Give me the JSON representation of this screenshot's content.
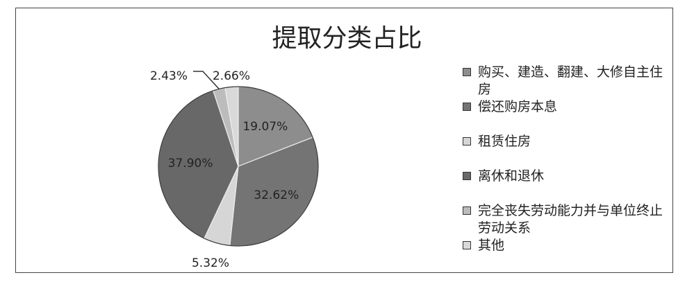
{
  "chart_data": {
    "type": "pie",
    "title": "提取分类占比",
    "start_angle": "12 o'clock",
    "direction": "clockwise",
    "legend_position": "right",
    "slices": [
      {
        "label": "购买、建造、翻建、大修自主住房",
        "value": 19.07,
        "data_label": "19.07%",
        "color": "#8d8d8d"
      },
      {
        "label": "偿还购房本息",
        "value": 32.62,
        "data_label": "32.62%",
        "color": "#747474"
      },
      {
        "label": "租赁住房",
        "value": 5.32,
        "data_label": "5.32%",
        "color": "#d6d6d6"
      },
      {
        "label": "离休和退休",
        "value": 37.9,
        "data_label": "37.90%",
        "color": "#686868"
      },
      {
        "label": "完全丧失劳动能力并与单位终止劳动关系",
        "value": 2.43,
        "data_label": "2.43%",
        "color": "#bcbcbc"
      },
      {
        "label": "其他",
        "value": 2.66,
        "data_label": "2.66%",
        "color": "#d9d9d9"
      }
    ]
  }
}
